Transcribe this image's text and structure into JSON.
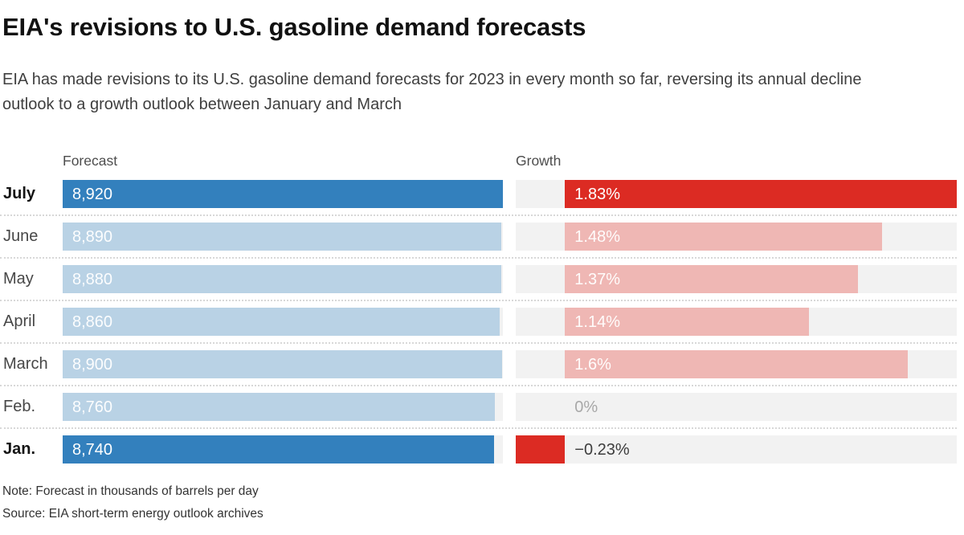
{
  "header": {
    "title": "EIA's revisions to U.S. gasoline demand forecasts",
    "subtitle": "EIA has made revisions to its U.S. gasoline demand forecasts for 2023 in every month so far, reversing its annual decline outlook to a growth outlook between January and March"
  },
  "column_headers": {
    "forecast": "Forecast",
    "growth": "Growth"
  },
  "footer": {
    "note": "Note: Forecast in thousands of barrels per day",
    "source": "Source: EIA short-term energy outlook archives"
  },
  "colors": {
    "forecast_bar": "#3380bd",
    "forecast_bar_muted": "#b9d2e5",
    "growth_bar": "#dc2b23",
    "growth_bar_muted": "#efb7b4",
    "bar_track": "#f2f2f2",
    "zero_label": "#a8a8a8",
    "negative_label": "#3d3d3d"
  },
  "chart_data": {
    "type": "bar",
    "orientation": "horizontal",
    "categories": [
      "July",
      "June",
      "May",
      "April",
      "March",
      "Feb.",
      "Jan."
    ],
    "emphasized_categories": [
      "July",
      "Jan."
    ],
    "series": [
      {
        "name": "Forecast",
        "values": [
          8920,
          8890,
          8880,
          8860,
          8900,
          8760,
          8740
        ],
        "labels": [
          "8,920",
          "8,890",
          "8,880",
          "8,860",
          "8,900",
          "8,760",
          "8,740"
        ],
        "axis_range": [
          0,
          8920
        ]
      },
      {
        "name": "Growth",
        "unit": "%",
        "values": [
          1.83,
          1.48,
          1.37,
          1.14,
          1.6,
          0,
          -0.23
        ],
        "labels": [
          "1.83%",
          "1.48%",
          "1.37%",
          "1.14%",
          "1.6%",
          "0%",
          "−0.23%"
        ],
        "axis_range": [
          -0.23,
          1.83
        ]
      }
    ],
    "grid": false,
    "legend": false
  }
}
